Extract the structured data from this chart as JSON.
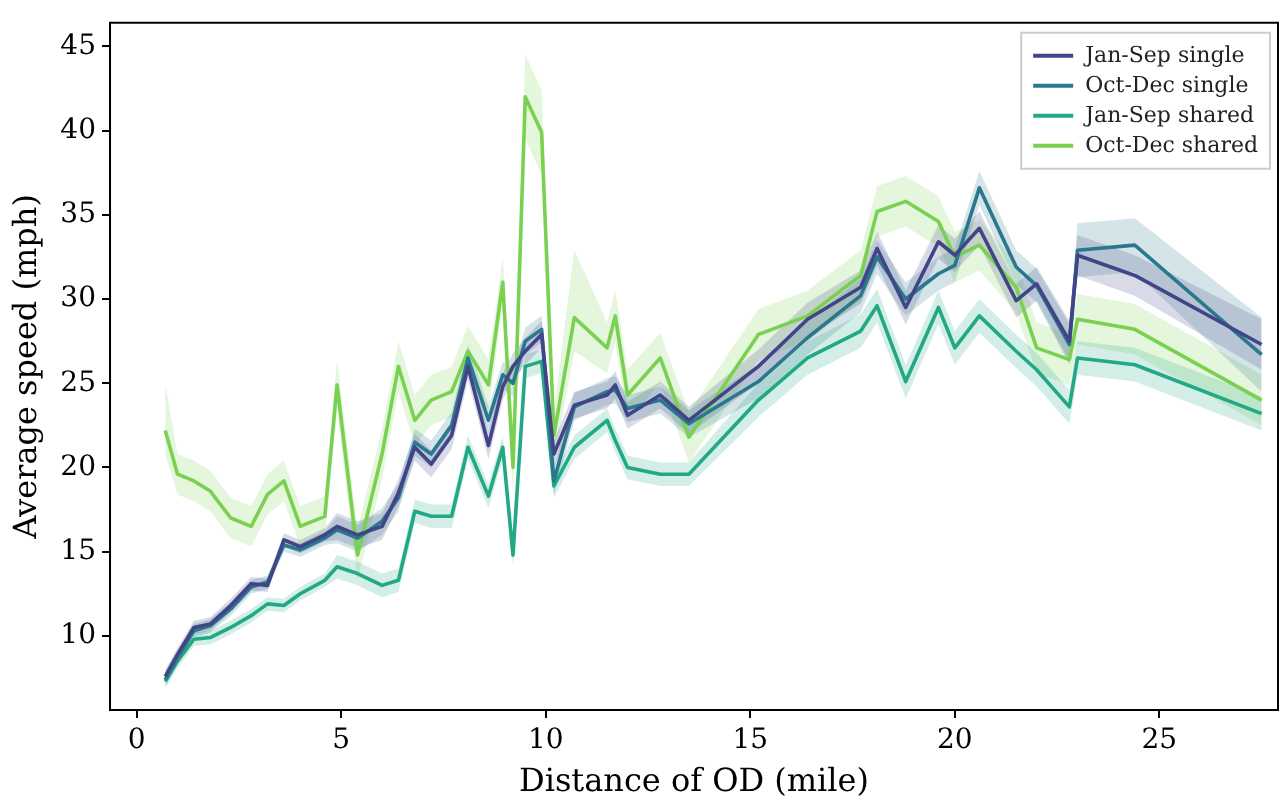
{
  "chart_data": {
    "type": "line",
    "xlabel": "Distance of OD (mile)",
    "ylabel": "Average speed (mph)",
    "x": [
      0.7,
      1.0,
      1.4,
      1.8,
      2.3,
      2.8,
      3.2,
      3.6,
      4.0,
      4.6,
      4.9,
      5.4,
      6.0,
      6.4,
      6.8,
      7.2,
      7.7,
      8.1,
      8.6,
      8.95,
      9.2,
      9.5,
      9.9,
      10.2,
      10.7,
      11.5,
      11.7,
      12.0,
      12.8,
      13.5,
      15.2,
      16.4,
      17.7,
      18.1,
      18.8,
      19.6,
      20.0,
      20.6,
      21.5,
      22.0,
      22.8,
      23.0,
      24.4,
      27.5
    ],
    "series": [
      {
        "name": "Jan-Sep single",
        "color": "#414487",
        "values": [
          7.6,
          8.9,
          10.5,
          10.7,
          11.8,
          13.1,
          13.0,
          15.7,
          15.3,
          16.0,
          16.5,
          16.0,
          16.5,
          18.5,
          21.2,
          20.2,
          21.9,
          26.0,
          21.3,
          24.8,
          26.0,
          26.9,
          27.9,
          20.8,
          23.7,
          24.3,
          24.9,
          23.1,
          24.3,
          22.8,
          26.0,
          28.8,
          30.7,
          33.0,
          29.5,
          33.4,
          32.6,
          34.2,
          29.9,
          30.9,
          27.5,
          32.6,
          31.4,
          27.3
        ],
        "lower": [
          7.2,
          8.5,
          10.1,
          10.3,
          11.4,
          12.7,
          12.6,
          15.3,
          14.9,
          15.6,
          15.7,
          15.2,
          15.7,
          17.7,
          20.4,
          19.4,
          21.1,
          25.2,
          20.5,
          24.0,
          25.2,
          26.1,
          27.1,
          20.0,
          22.9,
          23.5,
          24.1,
          22.3,
          23.5,
          22.0,
          25.0,
          27.8,
          29.7,
          32.0,
          28.5,
          32.4,
          31.6,
          33.2,
          28.9,
          29.9,
          26.3,
          31.4,
          30.2,
          25.8
        ],
        "upper": [
          8.0,
          9.3,
          10.9,
          11.1,
          12.2,
          13.5,
          13.4,
          16.1,
          15.7,
          16.4,
          17.3,
          16.8,
          17.3,
          19.3,
          22.0,
          21.0,
          22.7,
          26.8,
          22.1,
          25.6,
          26.8,
          27.7,
          28.7,
          21.6,
          24.5,
          25.1,
          25.7,
          23.9,
          25.1,
          23.6,
          27.0,
          29.8,
          31.7,
          34.0,
          30.5,
          34.4,
          33.6,
          35.2,
          30.9,
          31.9,
          28.7,
          33.8,
          32.6,
          28.8
        ]
      },
      {
        "name": "Oct-Dec single",
        "color": "#2a788e",
        "values": [
          7.4,
          8.7,
          10.3,
          10.6,
          11.6,
          12.9,
          13.2,
          15.4,
          15.1,
          15.8,
          16.3,
          15.8,
          16.8,
          18.2,
          21.5,
          20.8,
          22.5,
          26.5,
          22.8,
          25.5,
          25.0,
          27.5,
          28.2,
          19.2,
          23.6,
          24.5,
          24.6,
          23.5,
          24.0,
          22.6,
          25.1,
          27.7,
          30.2,
          32.5,
          30.0,
          31.5,
          32.0,
          36.6,
          31.9,
          30.8,
          27.3,
          32.9,
          33.2,
          26.7
        ],
        "lower": [
          7.0,
          8.3,
          9.9,
          10.2,
          11.2,
          12.5,
          12.8,
          15.0,
          14.7,
          15.4,
          15.5,
          15.0,
          16.0,
          17.4,
          20.7,
          20.0,
          21.7,
          25.7,
          22.0,
          24.7,
          24.2,
          26.7,
          27.4,
          18.4,
          22.8,
          23.7,
          23.8,
          22.7,
          23.2,
          21.8,
          24.1,
          26.7,
          29.2,
          31.5,
          29.0,
          30.5,
          31.0,
          35.6,
          30.9,
          29.8,
          26.1,
          31.3,
          31.6,
          24.5
        ],
        "upper": [
          7.8,
          9.1,
          10.7,
          11.0,
          12.0,
          13.3,
          13.6,
          15.8,
          15.5,
          16.2,
          17.1,
          16.6,
          17.6,
          19.0,
          22.3,
          21.6,
          23.3,
          27.3,
          23.6,
          26.3,
          25.8,
          28.3,
          29.0,
          20.0,
          24.4,
          25.3,
          25.4,
          24.3,
          24.8,
          23.4,
          26.1,
          28.7,
          31.2,
          33.5,
          31.0,
          32.5,
          33.0,
          37.6,
          32.9,
          31.8,
          28.5,
          34.5,
          34.8,
          28.9
        ]
      },
      {
        "name": "Jan-Sep shared",
        "color": "#22a884",
        "values": [
          7.3,
          8.5,
          9.8,
          9.9,
          10.5,
          11.2,
          11.9,
          11.8,
          12.5,
          13.3,
          14.1,
          13.7,
          13.0,
          13.3,
          17.4,
          17.1,
          17.1,
          21.2,
          18.3,
          21.2,
          14.8,
          26.0,
          26.3,
          18.9,
          21.2,
          22.8,
          21.6,
          20.0,
          19.6,
          19.6,
          24.0,
          26.5,
          28.1,
          29.6,
          25.1,
          29.5,
          27.1,
          29.0,
          26.9,
          25.8,
          23.6,
          26.5,
          26.1,
          23.2
        ],
        "lower": [
          6.9,
          8.1,
          9.4,
          9.5,
          10.1,
          10.8,
          11.5,
          11.4,
          12.1,
          12.9,
          13.4,
          13.0,
          12.3,
          12.6,
          16.7,
          16.4,
          16.4,
          20.5,
          17.6,
          20.5,
          14.1,
          25.3,
          25.6,
          18.2,
          20.5,
          22.1,
          20.9,
          19.3,
          18.9,
          18.9,
          23.0,
          25.5,
          27.1,
          28.6,
          24.1,
          28.5,
          26.1,
          28.0,
          25.9,
          24.8,
          22.6,
          25.5,
          25.1,
          22.2
        ],
        "upper": [
          7.7,
          8.9,
          10.2,
          10.3,
          10.9,
          11.6,
          12.3,
          12.2,
          12.9,
          13.7,
          14.8,
          14.4,
          13.7,
          14.0,
          18.1,
          17.8,
          17.8,
          21.9,
          19.0,
          21.9,
          15.5,
          26.7,
          27.0,
          19.6,
          21.9,
          23.5,
          22.3,
          20.7,
          20.3,
          20.3,
          25.0,
          27.5,
          29.1,
          30.6,
          26.1,
          30.5,
          28.1,
          30.0,
          27.9,
          26.8,
          24.6,
          27.5,
          27.1,
          24.2
        ]
      },
      {
        "name": "Oct-Dec shared",
        "color": "#7ad151",
        "values": [
          22.2,
          19.6,
          19.2,
          18.6,
          17.0,
          16.5,
          18.4,
          19.2,
          16.5,
          17.1,
          24.9,
          14.8,
          20.8,
          26.0,
          22.8,
          24.0,
          24.5,
          26.9,
          24.9,
          31.0,
          20.0,
          42.0,
          39.9,
          21.9,
          28.9,
          27.1,
          29.0,
          24.3,
          26.5,
          21.8,
          27.9,
          29.0,
          31.4,
          35.2,
          35.8,
          34.6,
          32.5,
          33.2,
          30.7,
          27.1,
          26.4,
          28.8,
          28.2,
          24.0
        ],
        "lower": [
          20.8,
          18.4,
          18.0,
          17.4,
          15.8,
          15.3,
          17.2,
          18.0,
          15.3,
          15.9,
          23.4,
          13.3,
          19.3,
          24.5,
          21.3,
          22.5,
          23.0,
          25.4,
          23.4,
          29.5,
          18.5,
          39.5,
          37.4,
          20.4,
          26.9,
          25.6,
          27.5,
          22.8,
          25.0,
          20.3,
          26.4,
          27.5,
          29.9,
          33.7,
          34.3,
          33.1,
          31.0,
          31.7,
          29.2,
          25.6,
          24.9,
          27.3,
          26.7,
          22.5
        ],
        "upper": [
          25.0,
          20.8,
          20.4,
          19.8,
          18.2,
          17.7,
          19.6,
          20.4,
          17.7,
          18.3,
          26.4,
          16.3,
          22.3,
          27.5,
          24.3,
          25.5,
          26.0,
          28.4,
          26.4,
          32.5,
          21.5,
          44.5,
          42.4,
          23.4,
          32.9,
          28.6,
          30.5,
          25.8,
          28.0,
          23.3,
          29.4,
          30.5,
          32.9,
          36.7,
          37.3,
          36.1,
          34.0,
          34.7,
          32.2,
          28.6,
          27.9,
          30.3,
          29.7,
          25.5
        ]
      }
    ],
    "xlim": [
      -0.65,
      27.9
    ],
    "xticks": [
      0,
      5,
      10,
      15,
      20,
      25
    ],
    "ylim": [
      5.6,
      46.4
    ],
    "yticks": [
      10,
      15,
      20,
      25,
      30,
      35,
      40,
      45
    ],
    "grid": false,
    "legend": "top right",
    "marker": "none",
    "line_style": "solid"
  }
}
